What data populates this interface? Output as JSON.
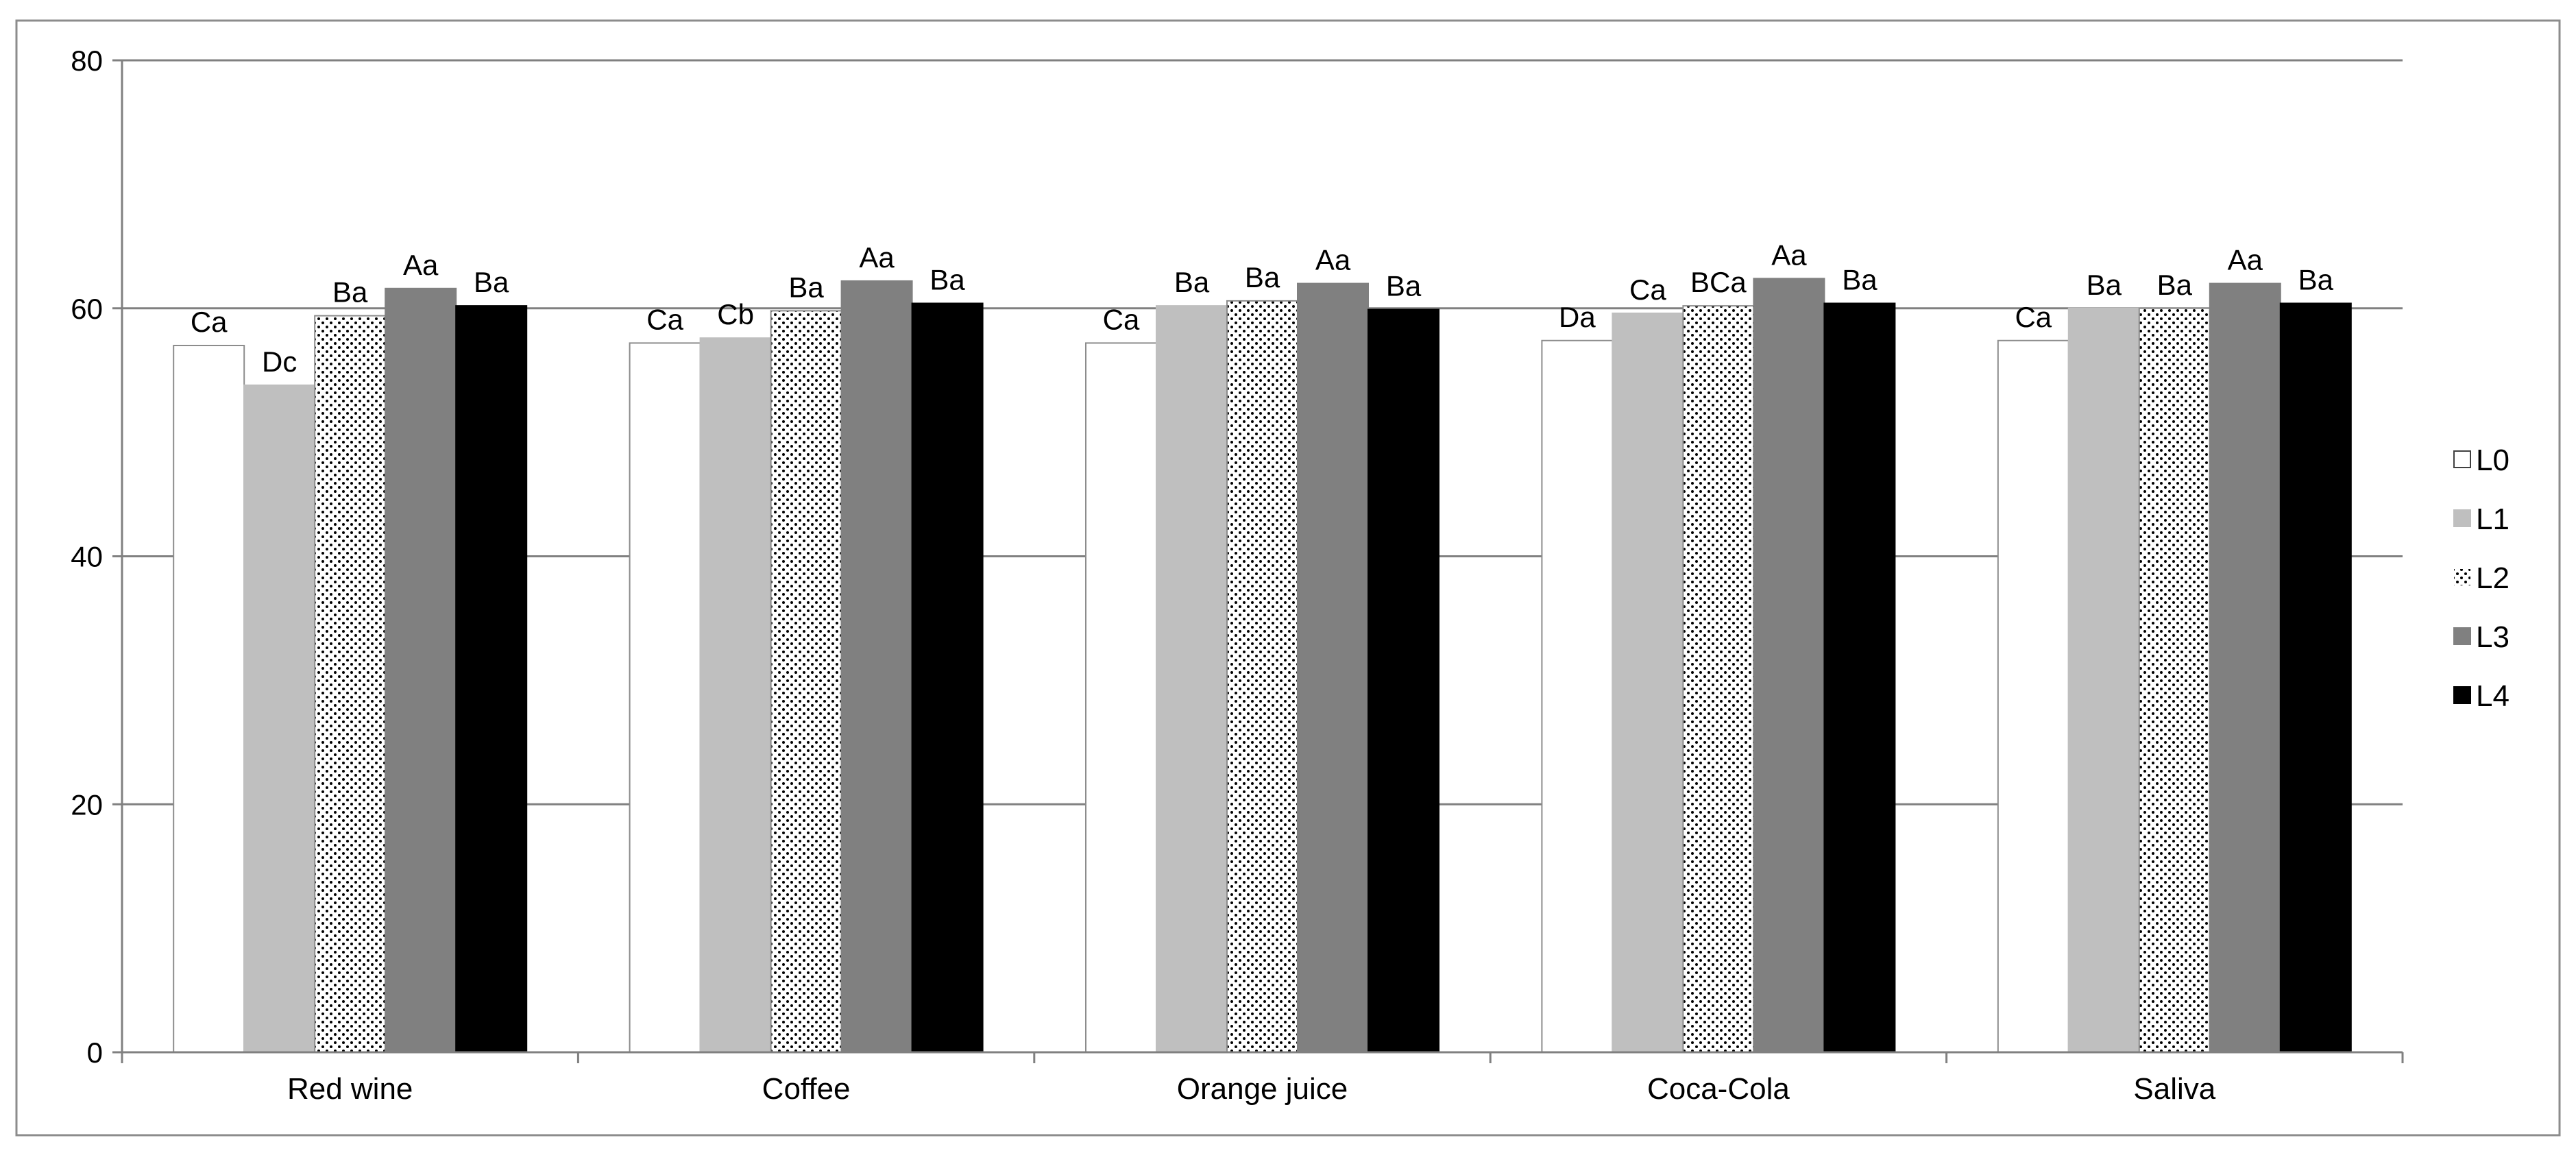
{
  "chart_data": {
    "type": "bar",
    "title": "",
    "xlabel": "",
    "ylabel": "",
    "ylim": [
      0,
      80
    ],
    "yticks": [
      0,
      20,
      40,
      60,
      80
    ],
    "grid": "horizontal major gridlines",
    "legend_position": "right",
    "categories": [
      "Red wine",
      "Coffee",
      "Orange juice",
      "Coca-Cola",
      "Saliva"
    ],
    "series": [
      {
        "name": "L0",
        "color": "#ffffff",
        "pattern": "none",
        "values": [
          57.0,
          57.2,
          57.2,
          57.4,
          57.4
        ],
        "labels": [
          "Ca",
          "Ca",
          "Ca",
          "Da",
          "Ca"
        ]
      },
      {
        "name": "L1",
        "color": "#bfbfbf",
        "pattern": "none",
        "values": [
          53.8,
          57.6,
          60.2,
          59.6,
          60.0
        ],
        "labels": [
          "Dc",
          "Cb",
          "Ba",
          "Ca",
          "Ba"
        ]
      },
      {
        "name": "L2",
        "color": "#ffffff",
        "pattern": "dots",
        "values": [
          59.4,
          59.8,
          60.6,
          60.2,
          60.0
        ],
        "labels": [
          "Ba",
          "Ba",
          "Ba",
          "BCa",
          "Ba"
        ]
      },
      {
        "name": "L3",
        "color": "#808080",
        "pattern": "none",
        "values": [
          61.6,
          62.2,
          62.0,
          62.4,
          62.0
        ],
        "labels": [
          "Aa",
          "Aa",
          "Aa",
          "Aa",
          "Aa"
        ]
      },
      {
        "name": "L4",
        "color": "#000000",
        "pattern": "none",
        "values": [
          60.2,
          60.4,
          59.9,
          60.4,
          60.4
        ],
        "labels": [
          "Ba",
          "Ba",
          "Ba",
          "Ba",
          "Ba"
        ]
      }
    ]
  }
}
